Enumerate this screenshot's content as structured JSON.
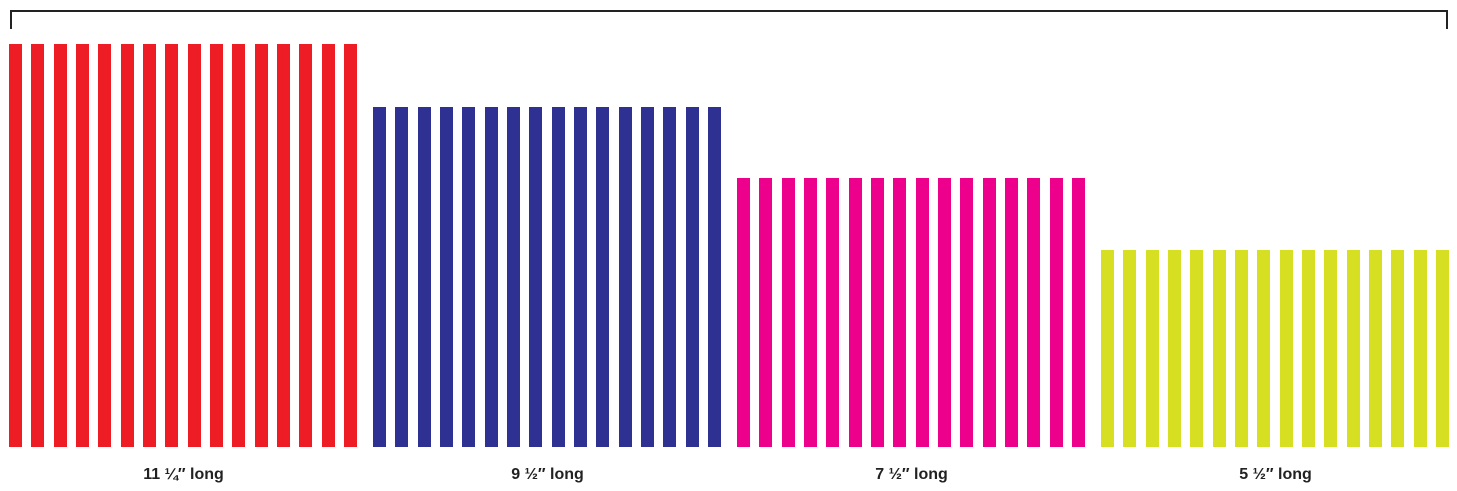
{
  "groups": [
    {
      "label": "11 ¼″ long",
      "length_in": 11.25,
      "color": "#ee1c24",
      "strip_count": 16
    },
    {
      "label": "9 ½″ long",
      "length_in": 9.5,
      "color": "#2e3192",
      "strip_count": 16
    },
    {
      "label": "7 ½″ long",
      "length_in": 7.5,
      "color": "#ec008c",
      "strip_count": 16
    },
    {
      "label": "5 ½″ long",
      "length_in": 5.5,
      "color": "#d7df23",
      "strip_count": 16
    }
  ]
}
